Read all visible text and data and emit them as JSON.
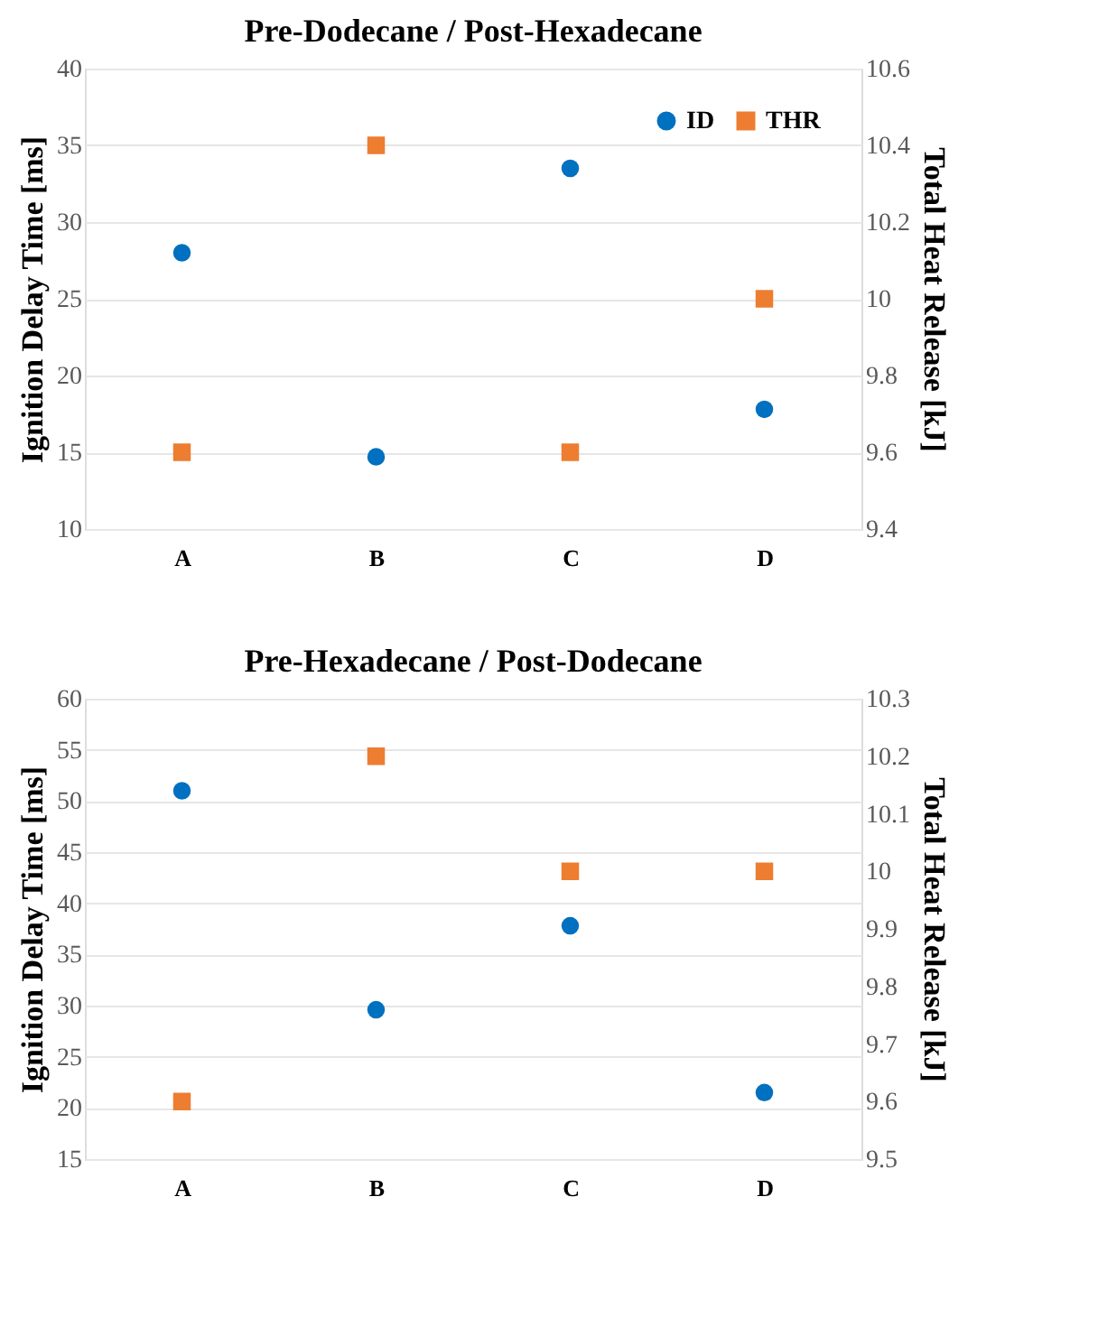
{
  "chart_data": [
    {
      "type": "scatter",
      "title": "Pre-Dodecane / Post-Hexadecane",
      "ylabel": "Ignition Delay Time [ms]",
      "y2label": "Total Heat Release [kJ]",
      "categories": [
        "A",
        "B",
        "C",
        "D"
      ],
      "series": [
        {
          "name": "ID",
          "color": "#0070c0",
          "marker": "circle",
          "values": [
            28,
            14.7,
            33.5,
            17.8
          ]
        },
        {
          "name": "THR",
          "color": "#ed7d31",
          "marker": "square",
          "axis": "y2",
          "values": [
            9.6,
            10.4,
            9.6,
            10.0
          ]
        }
      ],
      "ylim": [
        10,
        40
      ],
      "yticks": [
        10,
        15,
        20,
        25,
        30,
        35,
        40
      ],
      "y2lim": [
        9.4,
        10.6
      ],
      "y2ticks": [
        9.4,
        9.6,
        9.8,
        10,
        10.2,
        10.4,
        10.6
      ],
      "grid": "y",
      "legend": "top right"
    },
    {
      "type": "scatter",
      "title": "Pre-Hexadecane / Post-Dodecane",
      "ylabel": "Ignition Delay Time [ms]",
      "y2label": "Total Heat Release [kJ]",
      "categories": [
        "A",
        "B",
        "C",
        "D"
      ],
      "series": [
        {
          "name": "ID",
          "color": "#0070c0",
          "marker": "circle",
          "values": [
            51,
            29.6,
            37.8,
            21.5
          ]
        },
        {
          "name": "THR",
          "color": "#ed7d31",
          "marker": "square",
          "axis": "y2",
          "values": [
            9.6,
            10.2,
            10.0,
            10.0
          ]
        }
      ],
      "ylim": [
        15,
        60
      ],
      "yticks": [
        15,
        20,
        25,
        30,
        35,
        40,
        45,
        50,
        55,
        60
      ],
      "y2lim": [
        9.5,
        10.3
      ],
      "y2ticks": [
        9.5,
        9.6,
        9.7,
        9.8,
        9.9,
        10,
        10.1,
        10.2,
        10.3
      ],
      "grid": "y",
      "legend": "top right"
    }
  ]
}
